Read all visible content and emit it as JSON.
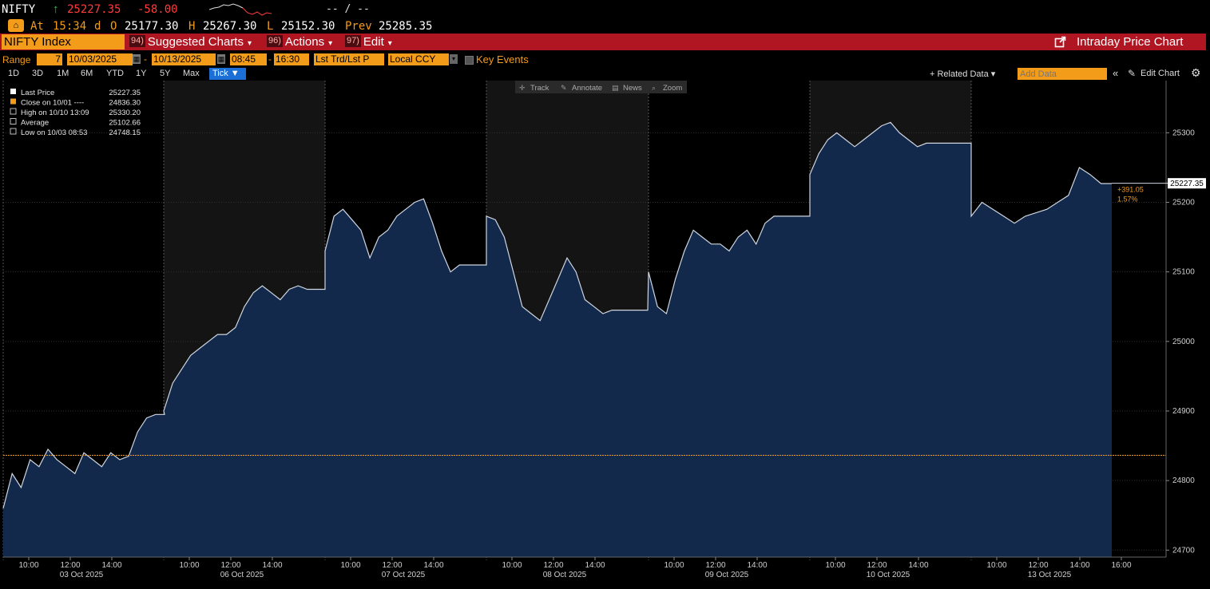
{
  "ticker": {
    "symbol": "NIFTY",
    "arrow": "↑",
    "last": "25227.35",
    "change": "-58.00",
    "bid_ask": "-- / --",
    "at_label": "At",
    "time": "15:34",
    "d_label": "d",
    "open_label": "O",
    "open": "25177.30",
    "high_label": "H",
    "high": "25267.30",
    "low_label": "L",
    "low": "25152.30",
    "prev_label": "Prev",
    "prev": "25285.35"
  },
  "toolbar": {
    "security": "NIFTY Index",
    "suggested_num": "94)",
    "suggested": "Suggested Charts",
    "actions_num": "96)",
    "actions": "Actions",
    "edit_num": "97)",
    "edit": "Edit",
    "title": "Intraday Price Chart"
  },
  "range_bar": {
    "range_label": "Range",
    "period": "7",
    "start": "10/03/2025",
    "dash": "-",
    "end": "10/13/2025",
    "t_start": "08:45",
    "t_end": "16:30",
    "mode": "Lst Trd/Lst P",
    "currency": "Local CCY",
    "key_events": "Key Events"
  },
  "range_buttons": [
    "1D",
    "3D",
    "1M",
    "6M",
    "YTD",
    "1Y",
    "5Y",
    "Max"
  ],
  "tick_button": "Tick ▼",
  "right_tools": {
    "related": "+ Related Data ▾",
    "add_data_placeholder": "Add Data",
    "edit_chart": "Edit Chart"
  },
  "chart_tools": [
    "Track",
    "Annotate",
    "News",
    "Zoom"
  ],
  "legend": [
    {
      "label": "Last Price",
      "value": "25227.35",
      "color": "#ffffff"
    },
    {
      "label": "Close on 10/01 ----",
      "value": "24836.30",
      "color": "#f39c1a"
    },
    {
      "label": "High on 10/10 13:09",
      "value": "25330.20",
      "color": "#bbbbbb"
    },
    {
      "label": "Average",
      "value": "25102.66",
      "color": "#bbbbbb"
    },
    {
      "label": "Low on 10/03 08:53",
      "value": "24748.15",
      "color": "#bbbbbb"
    }
  ],
  "colors": {
    "accent": "#f39c1a",
    "toolbar_red": "#b01622",
    "area_fill": "#13294b",
    "price_line": "#cfd6e0",
    "gain": "#1fd14a",
    "loss": "#ff3b3b"
  },
  "chart_data": {
    "type": "area",
    "y_ticks": [
      24700,
      24800,
      24900,
      25000,
      25100,
      25200,
      25300
    ],
    "ylim": [
      24690,
      25375
    ],
    "grid": true,
    "legend_position": "top-left",
    "reference_line": {
      "label": "Close on 10/01",
      "value": 24836.3
    },
    "last_value": 25227.35,
    "last_label": "25227.35",
    "change_label": "+391.05",
    "change_pct_label": "1.57%",
    "sessions": [
      {
        "date": "03 Oct 2025",
        "ticks": [
          "10:00",
          "12:00",
          "14:00"
        ],
        "values": [
          24760,
          24810,
          24790,
          24830,
          24820,
          24845,
          24830,
          24820,
          24810,
          24840,
          24830,
          24820,
          24840,
          24830,
          24835,
          24870,
          24890,
          24895,
          24895
        ]
      },
      {
        "date": "06 Oct 2025",
        "ticks": [
          "10:00",
          "12:00",
          "14:00"
        ],
        "values": [
          24900,
          24940,
          24960,
          24980,
          24990,
          25000,
          25010,
          25010,
          25020,
          25050,
          25070,
          25080,
          25070,
          25060,
          25075,
          25080,
          25075,
          25075,
          25075
        ]
      },
      {
        "date": "07 Oct 2025",
        "ticks": [
          "10:00",
          "12:00",
          "14:00"
        ],
        "values": [
          25130,
          25180,
          25190,
          25175,
          25160,
          25120,
          25150,
          25160,
          25180,
          25190,
          25200,
          25205,
          25170,
          25130,
          25100,
          25110,
          25110,
          25110,
          25110
        ]
      },
      {
        "date": "08 Oct 2025",
        "ticks": [
          "10:00",
          "12:00",
          "14:00"
        ],
        "values": [
          25180,
          25175,
          25150,
          25100,
          25050,
          25040,
          25030,
          25060,
          25090,
          25120,
          25100,
          25060,
          25050,
          25040,
          25045,
          25045,
          25045,
          25045,
          25045
        ]
      },
      {
        "date": "09 Oct 2025",
        "ticks": [
          "10:00",
          "12:00",
          "14:00"
        ],
        "values": [
          25100,
          25050,
          25040,
          25090,
          25130,
          25160,
          25150,
          25140,
          25140,
          25130,
          25150,
          25160,
          25140,
          25170,
          25180,
          25180,
          25180,
          25180,
          25180
        ]
      },
      {
        "date": "10 Oct 2025",
        "ticks": [
          "10:00",
          "12:00",
          "14:00"
        ],
        "values": [
          25240,
          25270,
          25290,
          25300,
          25290,
          25280,
          25290,
          25300,
          25310,
          25315,
          25300,
          25290,
          25280,
          25285,
          25285,
          25285,
          25285,
          25285,
          25285
        ]
      },
      {
        "date": "13 Oct 2025",
        "ticks": [
          "10:00",
          "12:00",
          "14:00",
          "16:00"
        ],
        "values": [
          25180,
          25200,
          25190,
          25180,
          25170,
          25180,
          25185,
          25190,
          25200,
          25210,
          25250,
          25240,
          25227,
          25227
        ]
      }
    ]
  }
}
